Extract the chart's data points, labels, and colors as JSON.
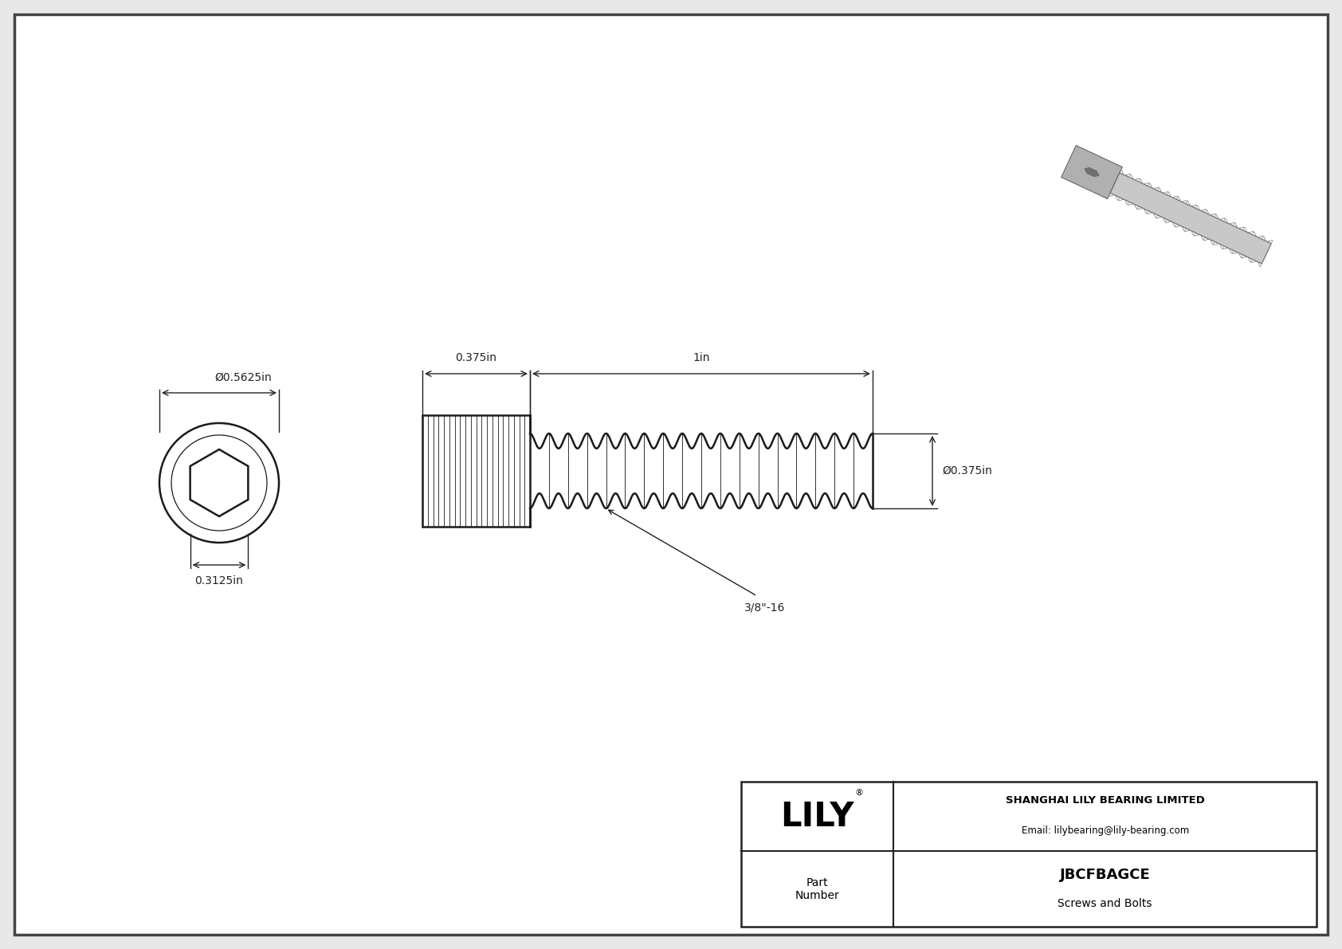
{
  "background_color": "#e8e8e8",
  "paper_color": "#ffffff",
  "line_color": "#1a1a1a",
  "dim_color": "#222222",
  "title": "JBCFBAGCE",
  "subtitle": "Screws and Bolts",
  "company": "SHANGHAI LILY BEARING LIMITED",
  "email": "Email: lilybearing@lily-bearing.com",
  "part_label": "Part\nNumber",
  "head_diameter": "Ø0.5625in",
  "hex_drive": "0.3125in",
  "body_length": "1in",
  "head_length": "0.375in",
  "body_diameter": "Ø0.375in",
  "thread_label": "3/8\"-16",
  "font_family": "DejaVu Sans"
}
